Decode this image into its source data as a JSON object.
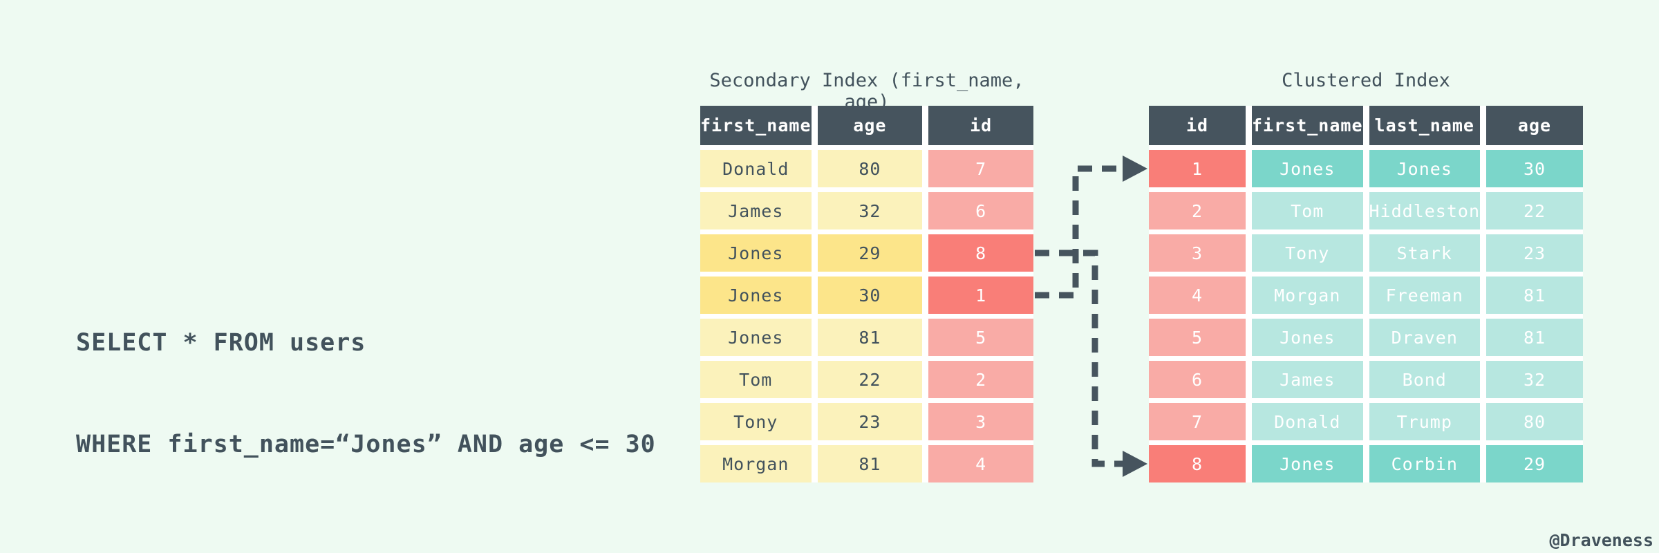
{
  "page": {
    "watermark": "@Draveness"
  },
  "query": {
    "line1": "SELECT * FROM users",
    "line2": "WHERE first_name=“Jones” AND age <= 30"
  },
  "colors": {
    "background": "#eefaf2",
    "slate": "#46545e",
    "text_dark": "#42525c",
    "yellow": "#fbf2bb",
    "yellow_highlight": "#fce58a",
    "red": "#f9aba6",
    "red_highlight": "#f97e78",
    "teal": "#b7e7e0",
    "teal_highlight": "#7bd6ca"
  },
  "secondary_index": {
    "title": "Secondary Index (first_name, age)",
    "columns": [
      "first_name",
      "age",
      "id"
    ],
    "column_palette": [
      "yellow",
      "yellow",
      "red"
    ],
    "rows": [
      {
        "cells": [
          "Donald",
          "80",
          "7"
        ],
        "highlight": false
      },
      {
        "cells": [
          "James",
          "32",
          "6"
        ],
        "highlight": false
      },
      {
        "cells": [
          "Jones",
          "29",
          "8"
        ],
        "highlight": true
      },
      {
        "cells": [
          "Jones",
          "30",
          "1"
        ],
        "highlight": true
      },
      {
        "cells": [
          "Jones",
          "81",
          "5"
        ],
        "highlight": false
      },
      {
        "cells": [
          "Tom",
          "22",
          "2"
        ],
        "highlight": false
      },
      {
        "cells": [
          "Tony",
          "23",
          "3"
        ],
        "highlight": false
      },
      {
        "cells": [
          "Morgan",
          "81",
          "4"
        ],
        "highlight": false
      }
    ]
  },
  "clustered_index": {
    "title": "Clustered Index",
    "columns": [
      "id",
      "first_name",
      "last_name",
      "age"
    ],
    "column_palette": [
      "red",
      "teal",
      "teal",
      "teal"
    ],
    "rows": [
      {
        "cells": [
          "1",
          "Jones",
          "Jones",
          "30"
        ],
        "highlight": true
      },
      {
        "cells": [
          "2",
          "Tom",
          "Hiddleston",
          "22"
        ],
        "highlight": false
      },
      {
        "cells": [
          "3",
          "Tony",
          "Stark",
          "23"
        ],
        "highlight": false
      },
      {
        "cells": [
          "4",
          "Morgan",
          "Freeman",
          "81"
        ],
        "highlight": false
      },
      {
        "cells": [
          "5",
          "Jones",
          "Draven",
          "81"
        ],
        "highlight": false
      },
      {
        "cells": [
          "6",
          "James",
          "Bond",
          "32"
        ],
        "highlight": false
      },
      {
        "cells": [
          "7",
          "Donald",
          "Trump",
          "80"
        ],
        "highlight": false
      },
      {
        "cells": [
          "8",
          "Jones",
          "Corbin",
          "29"
        ],
        "highlight": true
      }
    ]
  }
}
